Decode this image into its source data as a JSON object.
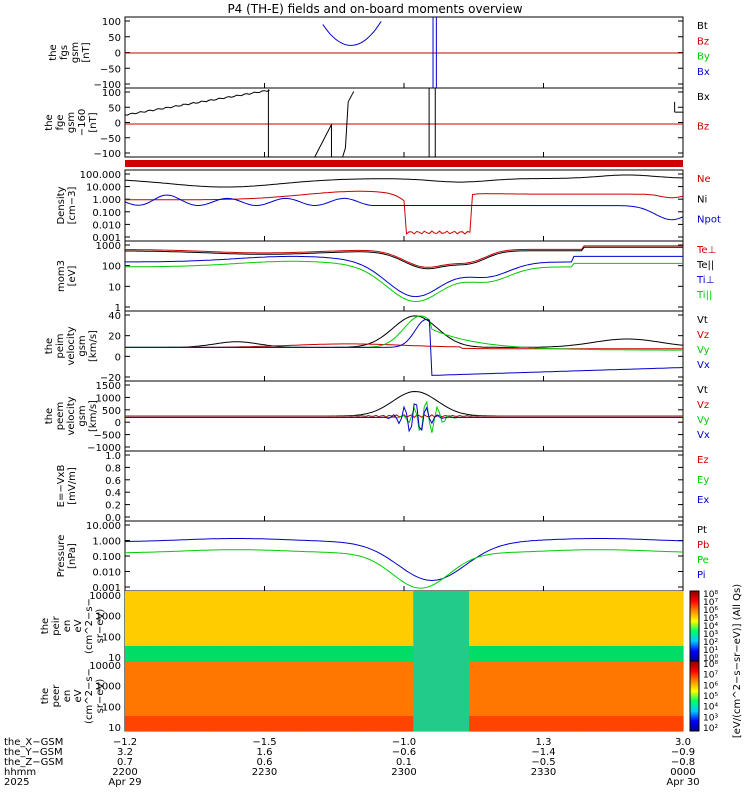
{
  "title": "P4 (TH-E) fields and on-board moments overview",
  "colors": {
    "black": "#000000",
    "red": "#cc0000",
    "green": "#00cc00",
    "blue": "#0000cc"
  },
  "panels": [
    {
      "id": "p1",
      "ylabel": [
        "the",
        "fgs",
        "gsm",
        "[nT]"
      ],
      "ticks": [
        "100",
        "50",
        "0",
        "−50",
        "−100"
      ],
      "legend": [
        {
          "text": "Bt",
          "color": "black"
        },
        {
          "text": "Bz",
          "color": "red"
        },
        {
          "text": "By",
          "color": "green"
        },
        {
          "text": "Bx",
          "color": "blue"
        }
      ]
    },
    {
      "id": "p2",
      "ylabel": [
        "the",
        "fge",
        "gsm",
        "−160",
        "[nT]"
      ],
      "ticks": [
        "100",
        "50",
        "0",
        "−50",
        "−100"
      ],
      "legend": [
        {
          "text": "Bx",
          "color": "black"
        },
        {
          "text": "Bz",
          "color": "red"
        }
      ]
    },
    {
      "id": "p3",
      "ylabel": [
        "Density",
        "[cm−3]"
      ],
      "ticks": [
        "100.000",
        "10.000",
        "1.000",
        "0.100",
        "0.010",
        "0.001"
      ],
      "legend": [
        {
          "text": "Ne",
          "color": "red"
        },
        {
          "text": "Ni",
          "color": "black"
        },
        {
          "text": "Npot",
          "color": "blue"
        }
      ]
    },
    {
      "id": "p4",
      "ylabel": [
        "mom3",
        "[eV]"
      ],
      "ticks": [
        "1000",
        "100",
        "10",
        "1"
      ],
      "legend": [
        {
          "text": "Te⊥",
          "color": "red"
        },
        {
          "text": "Te||",
          "color": "black"
        },
        {
          "text": "Ti⊥",
          "color": "blue"
        },
        {
          "text": "Ti||",
          "color": "green"
        }
      ]
    },
    {
      "id": "p5",
      "ylabel": [
        "the",
        "peim",
        "velocity",
        "gsm",
        "[km/s]"
      ],
      "ticks": [
        "40",
        "20",
        "0",
        "−20"
      ],
      "legend": [
        {
          "text": "Vt",
          "color": "black"
        },
        {
          "text": "Vz",
          "color": "red"
        },
        {
          "text": "Vy",
          "color": "green"
        },
        {
          "text": "Vx",
          "color": "blue"
        }
      ]
    },
    {
      "id": "p6",
      "ylabel": [
        "the",
        "peem",
        "velocity",
        "gsm",
        "[km/s]"
      ],
      "ticks": [
        "1500",
        "1000",
        "500",
        "0",
        "−500",
        "−1000"
      ],
      "legend": [
        {
          "text": "Vt",
          "color": "black"
        },
        {
          "text": "Vz",
          "color": "red"
        },
        {
          "text": "Vy",
          "color": "green"
        },
        {
          "text": "Vx",
          "color": "blue"
        }
      ]
    },
    {
      "id": "p7",
      "ylabel": [
        "E=−VxB",
        "[mV/m]"
      ],
      "ticks": [
        "1.0",
        "0.8",
        "0.6",
        "0.4",
        "0.2",
        "0.0"
      ],
      "legend": [
        {
          "text": "Ez",
          "color": "red"
        },
        {
          "text": "Ey",
          "color": "green"
        },
        {
          "text": "Ex",
          "color": "blue"
        }
      ]
    },
    {
      "id": "p8",
      "ylabel": [
        "Pressure",
        "[nPa]"
      ],
      "ticks": [
        "10.000",
        "1.000",
        "0.100",
        "0.010",
        "0.001"
      ],
      "legend": [
        {
          "text": "Pt",
          "color": "black"
        },
        {
          "text": "Pb",
          "color": "red"
        },
        {
          "text": "Pe",
          "color": "green"
        },
        {
          "text": "Pi",
          "color": "blue"
        }
      ]
    },
    {
      "id": "p9",
      "ylabel": [
        "the",
        "peir",
        "en",
        "eV",
        "(cm^2−s−",
        "sr−eV)"
      ],
      "ticks": [
        "10000",
        "1000",
        "100",
        "10"
      ]
    },
    {
      "id": "p10",
      "ylabel": [
        "the",
        "peer",
        "en",
        "eV",
        "(cm^2−s−",
        "sr−eV)"
      ],
      "ticks": [
        "10000",
        "1000",
        "100",
        "10"
      ]
    }
  ],
  "colorbar": {
    "ticks_top": [
      "10⁸",
      "10⁷",
      "10⁶",
      "10⁵",
      "10⁴",
      "10³",
      "10²",
      "10¹",
      "10⁰"
    ],
    "ticks_bottom": [
      "10⁸",
      "10⁷",
      "10⁶",
      "10⁵",
      "10⁴",
      "10³",
      "10²"
    ],
    "label": "[eV/(cm^2−s−sr−eV)] (All Qs)"
  },
  "xaxis": {
    "row_labels": [
      "the_X−GSM",
      "the_Y−GSM",
      "the_Z−GSM",
      "hhmm",
      "2025"
    ],
    "columns": [
      [
        "−1.2",
        "3.2",
        "0.7",
        "2200",
        "Apr 29"
      ],
      [
        "−1.5",
        "1.6",
        "0.6",
        "2230",
        ""
      ],
      [
        "−1.0",
        "−0.6",
        "0.1",
        "2300",
        ""
      ],
      [
        "1.3",
        "−1.4",
        "−0.5",
        "2330",
        ""
      ],
      [
        "3.0",
        "−0.9",
        "−0.8",
        "0000",
        "Apr 30"
      ]
    ]
  },
  "chart_data": {
    "type": "line",
    "x": [
      "2200",
      "2230",
      "2300",
      "2330",
      "0000"
    ],
    "note_time_range": [
      "Apr 29 2200",
      "Apr 30 0000"
    ],
    "series": [
      {
        "name": "Bt",
        "values": [
          null,
          null,
          40,
          null,
          null
        ]
      },
      {
        "name": "Bz",
        "values": [
          0,
          0,
          0,
          0,
          0
        ]
      },
      {
        "name": "Ne",
        "values": [
          0.3,
          4,
          0.002,
          0.8,
          0.9
        ]
      },
      {
        "name": "Ni",
        "values": [
          20,
          8,
          0.05,
          15,
          40
        ]
      },
      {
        "name": "Vt",
        "values": [
          2,
          8,
          25,
          15,
          12
        ]
      }
    ]
  }
}
